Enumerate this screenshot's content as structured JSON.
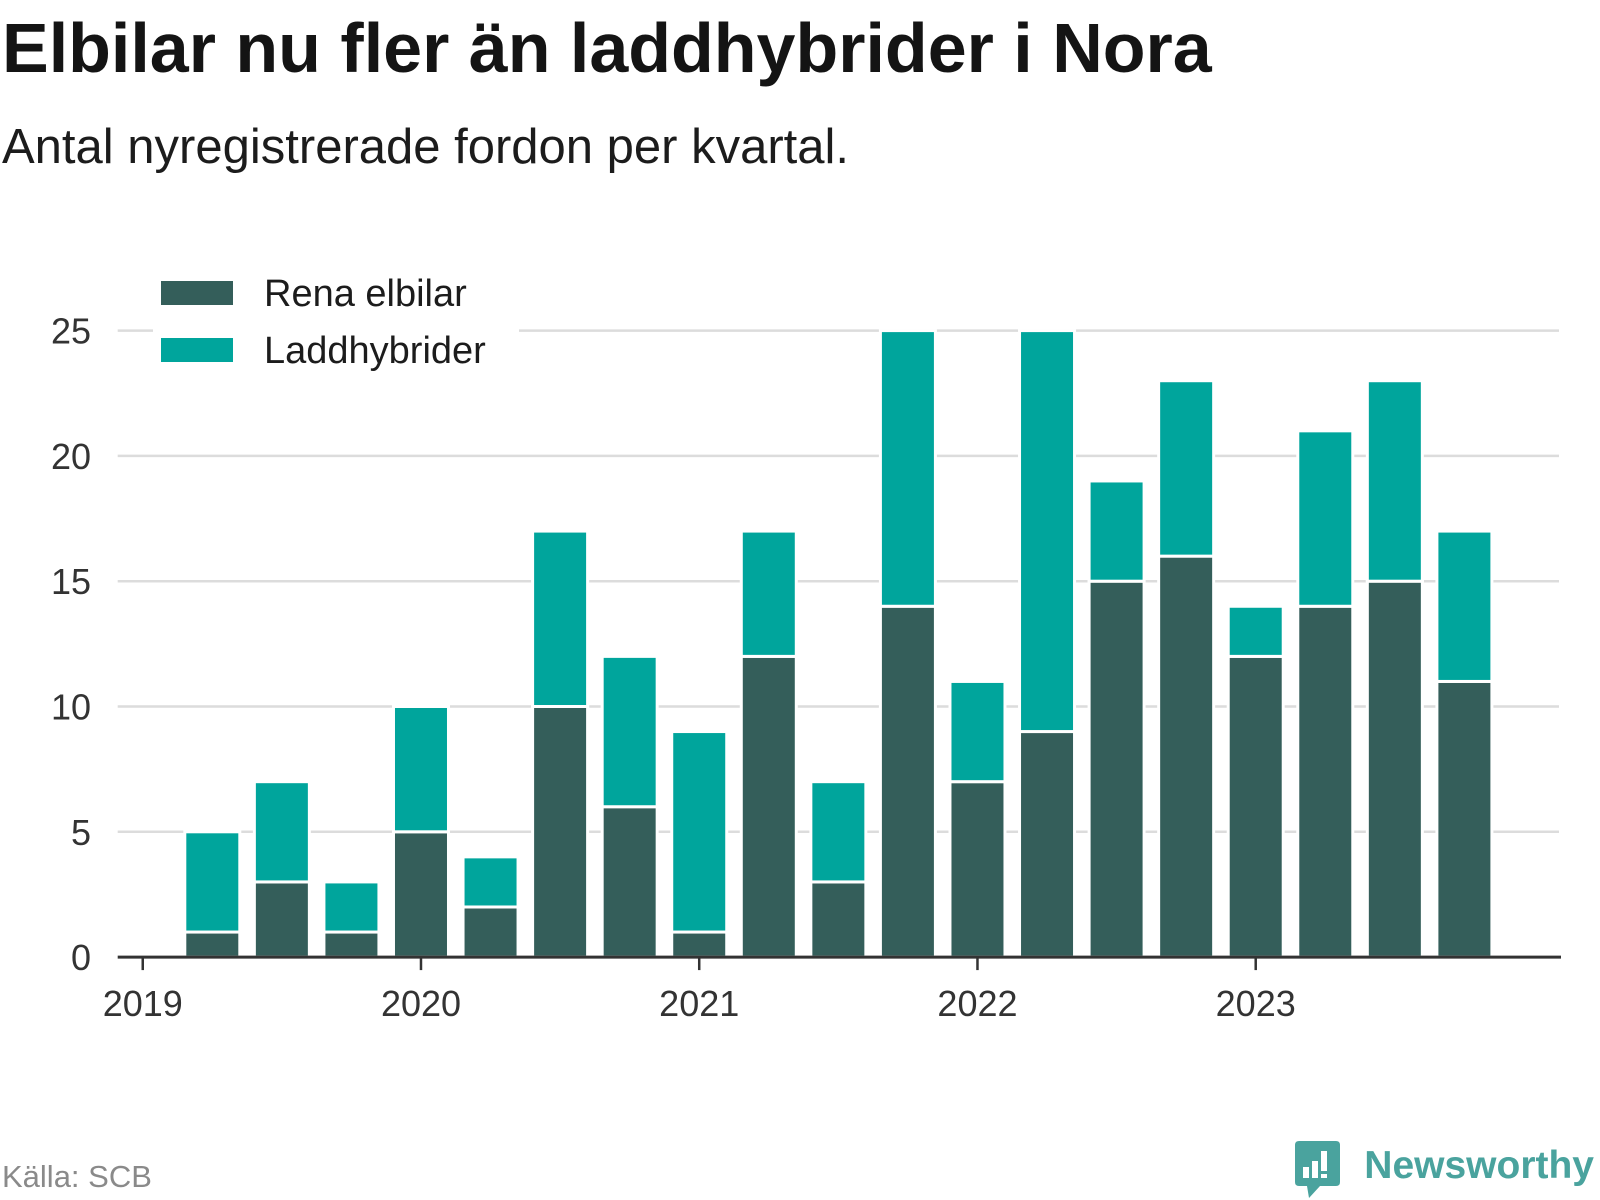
{
  "source": "Källa: SCB",
  "brand": {
    "name": "Newsworthy",
    "icon": "newsworthy-logo-icon",
    "color": "#4aa39e"
  },
  "colors": {
    "grid": "#dcdcdc",
    "axis": "#333333",
    "background": "#ffffff"
  },
  "chart_data": {
    "type": "bar",
    "stacked": true,
    "title": "Elbilar nu fler än laddhybrider i Nora",
    "subtitle": "Antal nyregistrerade fordon per kvartal.",
    "x": [
      2019.25,
      2019.5,
      2019.75,
      2020,
      2020.25,
      2020.5,
      2020.75,
      2021,
      2021.25,
      2021.5,
      2021.75,
      2022,
      2022.25,
      2022.5,
      2022.75,
      2023,
      2023.25,
      2023.5,
      2023.75
    ],
    "xlim": [
      2018.91,
      2024.09
    ],
    "xticks": [
      2019,
      2020,
      2021,
      2022,
      2023
    ],
    "xtick_labels": [
      "2019",
      "2020",
      "2021",
      "2022",
      "2023"
    ],
    "ylim": [
      0,
      25
    ],
    "yticks": [
      0,
      5,
      10,
      15,
      20,
      25
    ],
    "ytick_labels": [
      "0",
      "5",
      "10",
      "15",
      "20",
      "25"
    ],
    "grid": true,
    "legend": "top-left",
    "series": [
      {
        "name": "Rena elbilar",
        "color": "#345e5a",
        "values": [
          1,
          3,
          1,
          5,
          2,
          10,
          6,
          1,
          12,
          3,
          14,
          7,
          9,
          15,
          16,
          12,
          14,
          15,
          11
        ]
      },
      {
        "name": "Laddhybrider",
        "color": "#00a59c",
        "values": [
          4,
          4,
          2,
          5,
          2,
          7,
          6,
          8,
          5,
          4,
          11,
          4,
          16,
          4,
          7,
          2,
          7,
          8,
          6
        ]
      }
    ]
  }
}
